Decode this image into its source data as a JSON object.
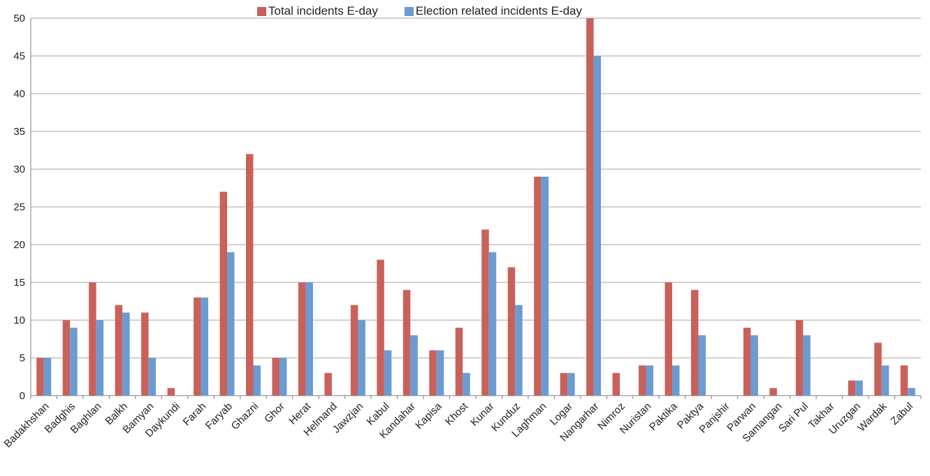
{
  "colors": {
    "total": "#c9615b",
    "election": "#6b9bd2",
    "grid": "#a6a6a6",
    "axis": "#7f7f7f"
  },
  "chart_data": {
    "type": "bar",
    "title": "",
    "xlabel": "",
    "ylabel": "",
    "ylim": [
      0,
      50
    ],
    "yticks": [
      "0",
      "5",
      "10",
      "15",
      "20",
      "25",
      "30",
      "35",
      "40",
      "45",
      "50"
    ],
    "grid": true,
    "legend_position": "top",
    "categories": [
      "Badakhshan",
      "Badghis",
      "Baghlan",
      "Balkh",
      "Bamyan",
      "Daykundi",
      "Farah",
      "Faryab",
      "Ghazni",
      "Ghor",
      "Herat",
      "Helmand",
      "Jawzjan",
      "Kabul",
      "Kandahar",
      "Kapisa",
      "Khost",
      "Kunar",
      "Kunduz",
      "Laghman",
      "Logar",
      "Nangarhar",
      "Nimroz",
      "Nuristan",
      "Paktika",
      "Paktya",
      "Panjshir",
      "Parwan",
      "Samangan",
      "Sari Pul",
      "Takhar",
      "Uruzgan",
      "Wardak",
      "Zabul"
    ],
    "series": [
      {
        "name": "Total  incidents  E-day",
        "values": [
          5,
          10,
          15,
          12,
          11,
          1,
          13,
          27,
          32,
          5,
          15,
          3,
          12,
          18,
          14,
          6,
          9,
          22,
          17,
          29,
          3,
          50,
          3,
          4,
          15,
          14,
          0,
          9,
          1,
          10,
          0,
          2,
          7,
          4
        ]
      },
      {
        "name": "Election related incidents  E-day",
        "values": [
          5,
          9,
          10,
          11,
          5,
          0,
          13,
          19,
          4,
          5,
          15,
          0,
          10,
          6,
          8,
          6,
          3,
          19,
          12,
          29,
          3,
          45,
          0,
          4,
          4,
          8,
          0,
          8,
          0,
          8,
          0,
          2,
          4,
          1
        ]
      }
    ]
  }
}
